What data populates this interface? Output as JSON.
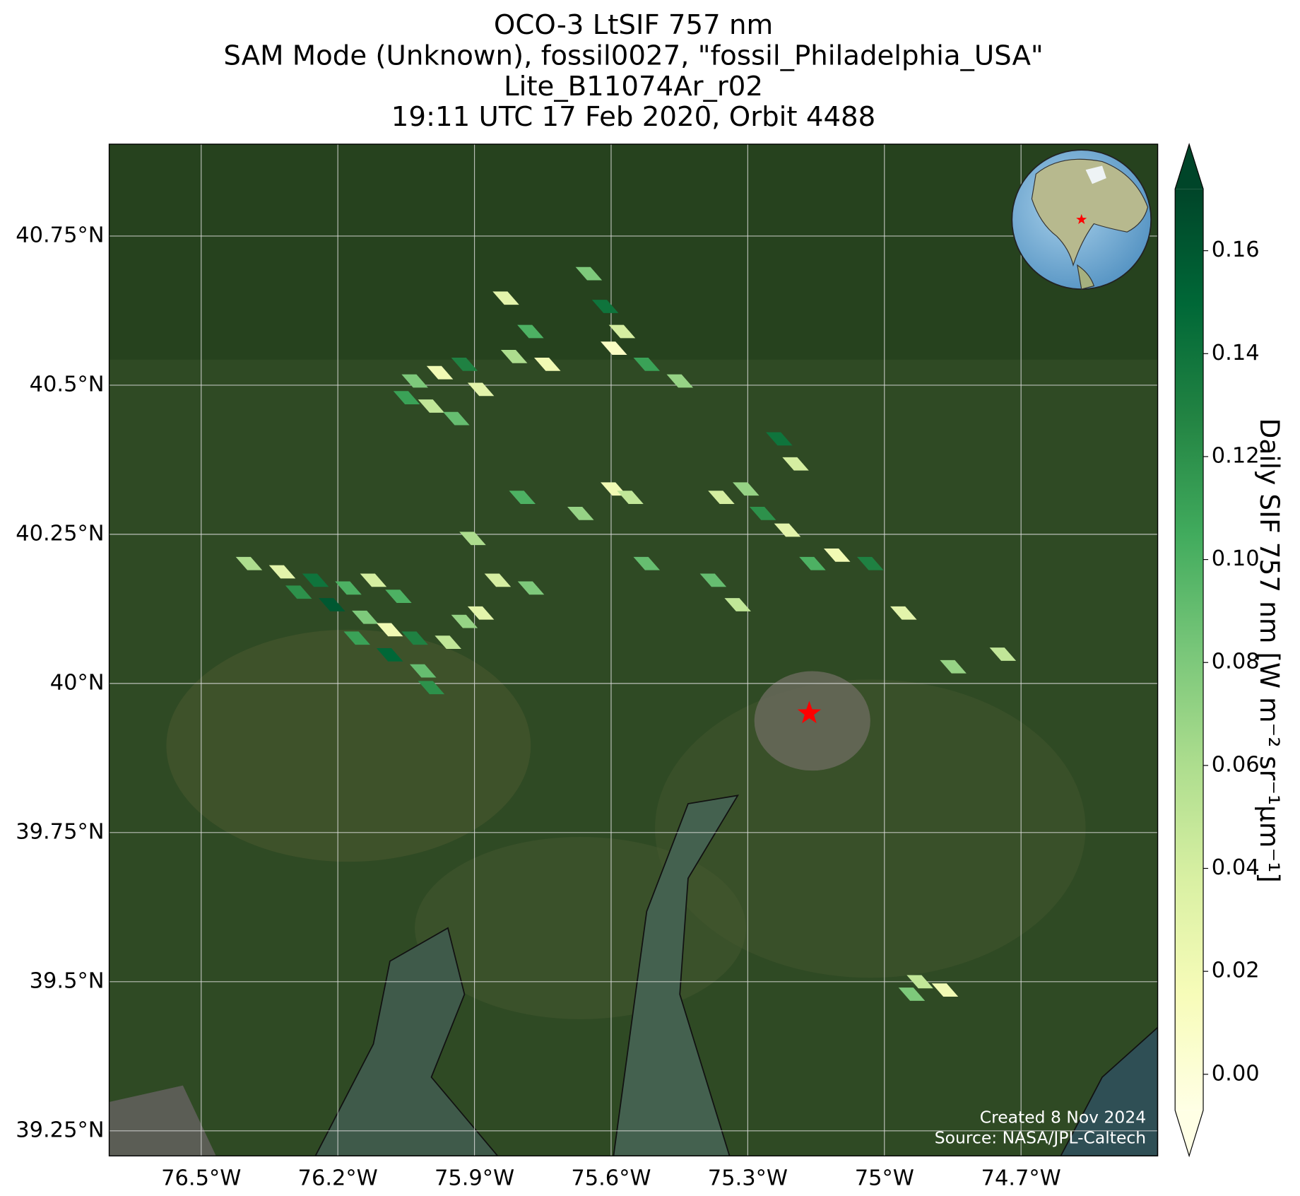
{
  "title_lines": [
    "OCO-3 LtSIF 757 nm",
    "SAM Mode (Unknown), fossil0027, \"fossil_Philadelphia_USA\"",
    "Lite_B11074Ar_r02",
    "19:11 UTC 17 Feb 2020, Orbit 4488"
  ],
  "map": {
    "xlim": [
      -76.702,
      -74.4
    ],
    "ylim": [
      39.208,
      40.904
    ],
    "xticks": [
      {
        "value": -76.5,
        "label": "76.5°W"
      },
      {
        "value": -76.2,
        "label": "76.2°W"
      },
      {
        "value": -75.9,
        "label": "75.9°W"
      },
      {
        "value": -75.6,
        "label": "75.6°W"
      },
      {
        "value": -75.3,
        "label": "75.3°W"
      },
      {
        "value": -75.0,
        "label": "75°W"
      },
      {
        "value": -74.7,
        "label": "74.7°W"
      }
    ],
    "yticks": [
      {
        "value": 39.25,
        "label": "39.25°N"
      },
      {
        "value": 39.5,
        "label": "39.5°N"
      },
      {
        "value": 39.75,
        "label": "39.75°N"
      },
      {
        "value": 40.0,
        "label": "40°N"
      },
      {
        "value": 40.25,
        "label": "40.25°N"
      },
      {
        "value": 40.5,
        "label": "40.5°N"
      },
      {
        "value": 40.75,
        "label": "40.75°N"
      }
    ],
    "grid": true,
    "target": {
      "lon": -75.165,
      "lat": 39.95,
      "color": "#ff0000"
    },
    "soundings": {
      "lon": [
        -76.395,
        -76.322,
        -76.249,
        -76.177,
        -76.286,
        -76.213,
        -76.14,
        -76.086,
        -76.031,
        -75.958,
        -76.158,
        -76.086,
        -76.013,
        -75.995,
        -76.122,
        -76.067,
        -75.922,
        -75.886,
        -76.031,
        -75.976,
        -75.922,
        -75.995,
        -75.886,
        -75.94,
        -76.049,
        -75.831,
        -75.777,
        -75.813,
        -75.74,
        -75.649,
        -75.613,
        -75.576,
        -75.522,
        -75.449,
        -75.594,
        -75.594,
        -75.558,
        -75.667,
        -75.522,
        -75.795,
        -75.849,
        -75.776,
        -75.904,
        -75.358,
        -75.304,
        -75.267,
        -75.213,
        -75.158,
        -75.104,
        -75.031,
        -75.231,
        -75.195,
        -75.376,
        -75.322,
        -74.958,
        -74.849,
        -74.74,
        -74.922,
        -74.867,
        -74.94
      ],
      "lat": [
        40.201,
        40.187,
        40.173,
        40.16,
        40.153,
        40.132,
        40.111,
        40.09,
        40.076,
        40.069,
        40.076,
        40.048,
        40.021,
        39.993,
        40.173,
        40.146,
        40.104,
        40.118,
        40.507,
        40.521,
        40.535,
        40.465,
        40.493,
        40.444,
        40.479,
        40.646,
        40.59,
        40.548,
        40.535,
        40.687,
        40.632,
        40.59,
        40.535,
        40.507,
        40.562,
        40.326,
        40.312,
        40.285,
        40.201,
        40.312,
        40.173,
        40.16,
        40.243,
        40.312,
        40.326,
        40.285,
        40.257,
        40.201,
        40.215,
        40.201,
        40.41,
        40.368,
        40.173,
        40.132,
        40.118,
        40.028,
        40.049,
        39.5,
        39.486,
        39.479
      ],
      "values": [
        0.06,
        0.03,
        0.14,
        0.1,
        0.12,
        0.16,
        0.08,
        0.02,
        0.13,
        0.05,
        0.11,
        0.15,
        0.09,
        0.12,
        0.04,
        0.1,
        0.07,
        0.03,
        0.08,
        0.02,
        0.13,
        0.05,
        0.03,
        0.09,
        0.11,
        0.03,
        0.1,
        0.06,
        0.02,
        0.08,
        0.14,
        0.04,
        0.11,
        0.07,
        0.01,
        0.02,
        0.05,
        0.07,
        0.09,
        0.1,
        0.04,
        0.08,
        0.06,
        0.04,
        0.07,
        0.12,
        0.03,
        0.1,
        0.02,
        0.13,
        0.14,
        0.04,
        0.09,
        0.05,
        0.03,
        0.07,
        0.05,
        0.05,
        0.02,
        0.08
      ]
    }
  },
  "colorbar": {
    "label": "Daily SIF 757 nm [W m⁻² sr⁻¹μm⁻¹]",
    "clim": [
      -0.007,
      0.172
    ],
    "ticks": [
      {
        "value": 0,
        "label": "0.00"
      },
      0.02,
      0.04,
      0.06,
      0.08,
      {
        "value": 0.1,
        "label": "0.10"
      },
      0.12,
      0.14,
      0.16
    ],
    "colormap": [
      "#ffffe5",
      "#f7fcb9",
      "#d9f0a3",
      "#addd8e",
      "#78c679",
      "#41ab5d",
      "#238443",
      "#006837",
      "#004529"
    ]
  },
  "footer": [
    "Created 8 Nov 2024",
    "Source: NASA/JPL-Caltech"
  ]
}
